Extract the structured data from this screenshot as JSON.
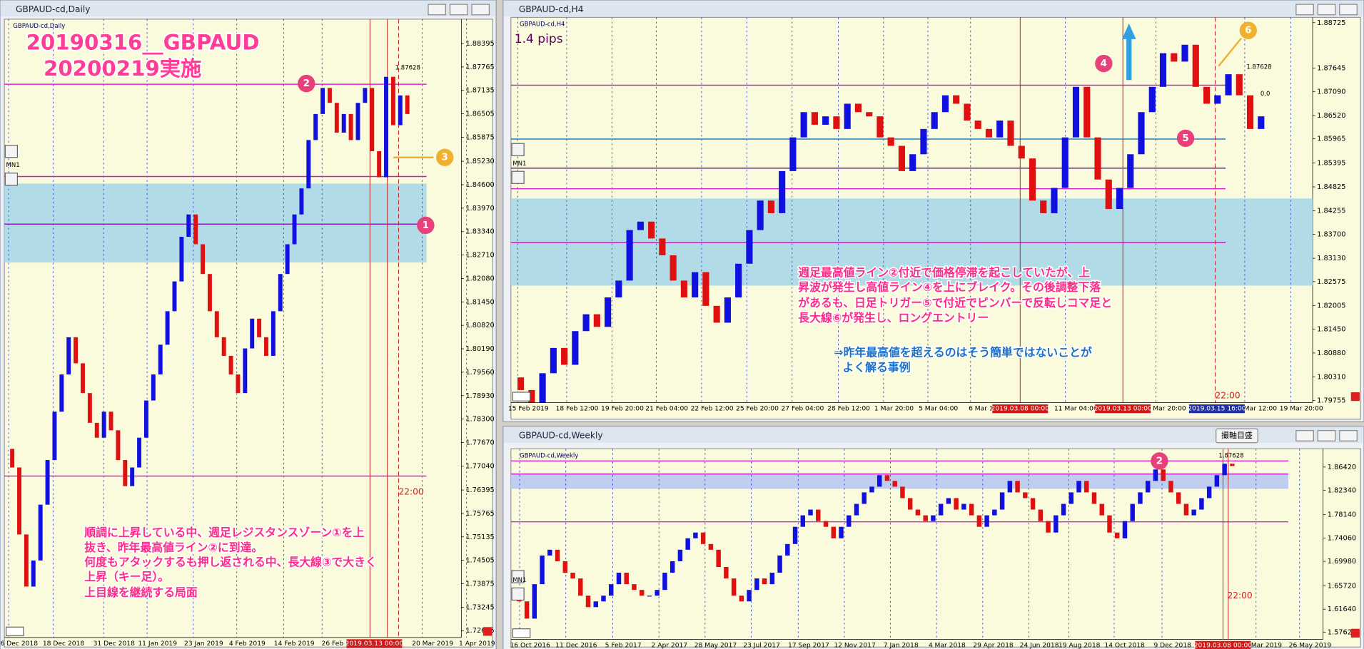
{
  "windows": [
    {
      "title": "GBPAUD-cd,Daily",
      "chart": {
        "type": "candlestick",
        "label": "GBPAUD-cd,Daily",
        "ylim": [
          1.7243,
          1.8905
        ],
        "yticks": [
          1.88395,
          1.87765,
          1.87135,
          1.86505,
          1.85875,
          {
            "value": 1.8523,
            "label": "1.85230"
          },
          {
            "value": 1.846,
            "label": "1.84600"
          },
          {
            "value": 1.8397,
            "label": "1.83970"
          },
          {
            "value": 1.8334,
            "label": "1.83340"
          },
          {
            "value": 1.8271,
            "label": "1.82710"
          },
          {
            "value": 1.8208,
            "label": "1.82080"
          },
          {
            "value": 1.8145,
            "label": "1.81450"
          },
          {
            "value": 1.8082,
            "label": "1.80820"
          },
          {
            "value": 1.8019,
            "label": "1.80190"
          },
          {
            "value": 1.7956,
            "label": "1.79560"
          },
          {
            "value": 1.7893,
            "label": "1.78930"
          },
          {
            "value": 1.783,
            "label": "1.78300"
          },
          {
            "value": 1.7767,
            "label": "1.77670"
          },
          {
            "value": 1.7704,
            "label": "1.77040"
          },
          1.76395,
          1.75765,
          1.75135,
          1.74505,
          1.73875,
          1.73245,
          1.72615
        ],
        "xlabels": [
          "6 Dec 2018",
          "18 Dec 2018",
          "31 Dec 2018",
          "11 Jan 2019",
          "23 Jan 2019",
          "4 Feb 2019",
          "14 Feb 2019",
          "26 Feb",
          "20 Mar 2019",
          "1 Apr 2019"
        ],
        "markers": [
          "2019.03.13 00:00"
        ],
        "zone": [
          1.8251,
          1.8463
        ],
        "zone_color": "#a8d8e8",
        "levels": [
          {
            "value": 1.873,
            "color": "#e020d0"
          },
          {
            "value": 1.8482,
            "color": "#c020c0"
          },
          {
            "value": 1.8354,
            "color": "#8020c0"
          },
          {
            "value": 1.7677,
            "color": "#e020d0"
          }
        ],
        "up_color": "#1010e0",
        "down_color": "#e01010",
        "open": 1.775,
        "closes": [
          1.77,
          1.752,
          1.738,
          1.745,
          1.76,
          1.772,
          1.785,
          1.795,
          1.805,
          1.798,
          1.79,
          1.782,
          1.778,
          1.785,
          1.78,
          1.772,
          1.765,
          1.77,
          1.778,
          1.788,
          1.795,
          1.803,
          1.812,
          1.82,
          1.832,
          1.838,
          1.83,
          1.822,
          1.812,
          1.805,
          1.8,
          1.795,
          1.79,
          1.802,
          1.81,
          1.805,
          1.8,
          1.812,
          1.822,
          1.83,
          1.838,
          1.845,
          1.858,
          1.865,
          1.872,
          1.868,
          1.86,
          1.865,
          1.858,
          1.868,
          1.872,
          1.855,
          1.848,
          1.875,
          1.862,
          1.87,
          1.865
        ]
      },
      "headline": [
        "20190316__GBPAUD",
        "20200219実施"
      ],
      "note": [
        "順調に上昇している中、週足レジスタンスゾーン①を上",
        "抜き、昨年最高値ライン②に到達。",
        "何度もアタックするも押し返される中、長大線③で大きく",
        "上昇（キー足）。",
        "上目線を継続する局面"
      ],
      "badges": [
        "1",
        "2",
        "3"
      ],
      "time": "22:00",
      "price_tags": [
        "1.87628"
      ],
      "period": "MN1"
    },
    {
      "title": "GBPAUD-cd,H4",
      "chart": {
        "type": "candlestick",
        "label": "GBPAUD-cd,H4",
        "ylim": [
          1.797,
          1.8885
        ],
        "yticks": [
          1.88725,
          1.87645,
          {
            "value": 1.8709,
            "label": "1.87090"
          },
          {
            "value": 1.8652,
            "label": "1.86520"
          },
          1.85965,
          1.85395,
          1.84825,
          1.84255,
          {
            "value": 1.837,
            "label": "1.83700"
          },
          {
            "value": 1.8313,
            "label": "1.83130"
          },
          1.82575,
          1.82005,
          {
            "value": 1.8145,
            "label": "1.81450"
          },
          {
            "value": 1.8088,
            "label": "1.80880"
          },
          {
            "value": 1.8031,
            "label": "1.80310"
          },
          1.79755
        ],
        "xlabels": [
          "15 Feb 2019",
          "18 Feb 12:00",
          "19 Feb 20:00",
          "21 Feb 04:00",
          "22 Feb 12:00",
          "25 Feb 20:00",
          "27 Feb 04:00",
          "28 Feb 12:00",
          "1 Mar 20:00",
          "5 Mar 04:00",
          "6 Mar 1",
          "11 Mar 04:00",
          "3 Mar 20:00",
          "18 Mar 12:00",
          "19 Mar 20:00"
        ],
        "markers": [
          "2019.03.08 00:00",
          "2019.03.13 00:00",
          "2019.03.15 16:00"
        ],
        "zone": [
          1.8248,
          1.8455
        ],
        "zone_color": "#a8d8e8",
        "levels": [
          {
            "value": 1.8724,
            "color": "#c020c0"
          },
          {
            "value": 1.8596,
            "color": "#2080c0"
          },
          {
            "value": 1.8527,
            "color": "#6020a0"
          },
          {
            "value": 1.8478,
            "color": "#e020d0"
          },
          {
            "value": 1.835,
            "color": "#c020c0"
          }
        ],
        "up_color": "#1010e0",
        "down_color": "#e01010",
        "open": 1.803,
        "closes": [
          1.8,
          1.797,
          1.804,
          1.81,
          1.806,
          1.814,
          1.818,
          1.815,
          1.822,
          1.826,
          1.838,
          1.84,
          1.836,
          1.832,
          1.826,
          1.822,
          1.828,
          1.82,
          1.816,
          1.822,
          1.83,
          1.838,
          1.845,
          1.842,
          1.852,
          1.86,
          1.866,
          1.863,
          1.865,
          1.862,
          1.868,
          1.866,
          1.865,
          1.86,
          1.858,
          1.852,
          1.856,
          1.862,
          1.866,
          1.87,
          1.868,
          1.864,
          1.862,
          1.86,
          1.864,
          1.858,
          1.855,
          1.845,
          1.842,
          1.848,
          1.86,
          1.872,
          1.86,
          1.85,
          1.843,
          1.848,
          1.856,
          1.866,
          1.872,
          1.88,
          1.878,
          1.882,
          1.872,
          1.868,
          1.87,
          1.875,
          1.87,
          1.862,
          1.865
        ]
      },
      "pips": "1.4 pips",
      "note": [
        "週足最高値ライン②付近で価格停滞を起こしていたが、上",
        "昇波が発生し高値ライン④を上にブレイク。その後調整下落",
        "があるも、日足トリガー⑤で付近でピンバーで反転しコマ足と",
        "長大線⑥が発生し、ロングエントリー"
      ],
      "note2": [
        "⇒昨年最高値を超えるのはそう簡単ではないことが",
        "よく解る事例"
      ],
      "badges": [
        "4",
        "5",
        "6"
      ],
      "time": "22:00",
      "price_tags": [
        "1.87628",
        "0.0"
      ],
      "period": "MN1"
    },
    {
      "title": "GBPAUD-cd,Weekly",
      "chart": {
        "type": "candlestick",
        "label": "GBPAUD-cd,Weekly",
        "ylim": [
          1.564,
          1.896
        ],
        "yticks": [
          {
            "value": 1.8642,
            "label": "1.86420"
          },
          {
            "value": 1.8234,
            "label": "1.82340"
          },
          {
            "value": 1.7814,
            "label": "1.78140"
          },
          {
            "value": 1.7406,
            "label": "1.74060"
          },
          {
            "value": 1.6998,
            "label": "1.69980"
          },
          {
            "value": 1.6572,
            "label": "1.65720"
          },
          {
            "value": 1.6164,
            "label": "1.61640"
          },
          {
            "value": 1.5762,
            "label": "1.57620"
          }
        ],
        "xlabels": [
          "16 Oct 2016",
          "11 Dec 2016",
          "5 Feb 2017",
          "2 Apr 2017",
          "28 May 2017",
          "23 Jul 2017",
          "17 Sep 2017",
          "12 Nov 2017",
          "7 Jan 2018",
          "4 Mar 2018",
          "29 Apr 2018",
          "24 Jun 2018",
          "19 Aug 2018",
          "14 Oct 2018",
          "9 Dec 2018",
          "Mar 2019",
          "26 May 2019"
        ],
        "markers": [
          "2019.03.08 00:00"
        ],
        "zone": [
          1.8263,
          1.8521
        ],
        "zone_color": "#b8c8f0",
        "levels": [
          {
            "value": 1.8748,
            "color": "#e020d0"
          },
          {
            "value": 1.8521,
            "color": "#c020c0"
          },
          {
            "value": 1.7687,
            "color": "#e020d0"
          }
        ],
        "up_color": "#1010e0",
        "down_color": "#e01010",
        "open": 1.65,
        "closes": [
          1.63,
          1.6,
          1.66,
          1.71,
          1.72,
          1.7,
          1.68,
          1.67,
          1.64,
          1.62,
          1.63,
          1.64,
          1.66,
          1.68,
          1.66,
          1.65,
          1.64,
          1.64,
          1.65,
          1.68,
          1.7,
          1.72,
          1.74,
          1.75,
          1.73,
          1.72,
          1.69,
          1.67,
          1.64,
          1.63,
          1.65,
          1.67,
          1.66,
          1.68,
          1.71,
          1.73,
          1.76,
          1.78,
          1.79,
          1.77,
          1.76,
          1.74,
          1.76,
          1.78,
          1.8,
          1.82,
          1.83,
          1.85,
          1.84,
          1.83,
          1.81,
          1.79,
          1.78,
          1.77,
          1.78,
          1.8,
          1.81,
          1.79,
          1.8,
          1.78,
          1.76,
          1.78,
          1.79,
          1.82,
          1.84,
          1.82,
          1.81,
          1.79,
          1.77,
          1.75,
          1.78,
          1.8,
          1.82,
          1.84,
          1.82,
          1.8,
          1.78,
          1.75,
          1.74,
          1.77,
          1.8,
          1.82,
          1.84,
          1.86,
          1.84,
          1.82,
          1.8,
          1.78,
          1.79,
          1.81,
          1.83,
          1.85,
          1.87,
          1.866
        ]
      },
      "badges": [
        "2"
      ],
      "time": "22:00",
      "price_tags": [
        "1.87628"
      ],
      "period": "MN1"
    }
  ],
  "button": "撮軸目盛"
}
